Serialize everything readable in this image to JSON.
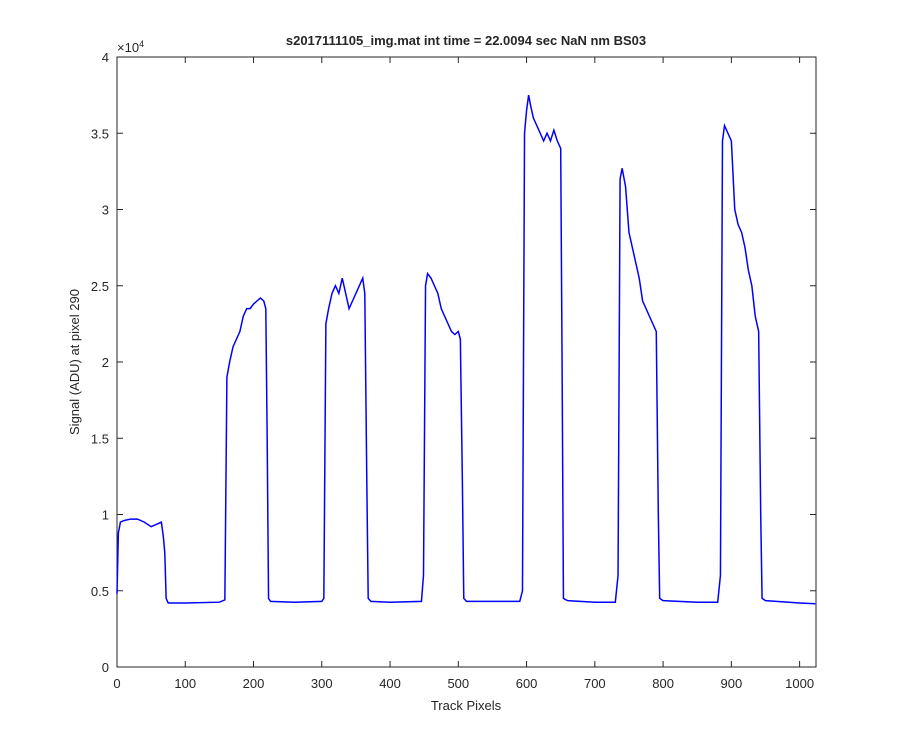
{
  "chart_data": {
    "type": "line",
    "title": "s2017111105_img.mat int time = 22.0094 sec  NaN nm BS03",
    "x_label": "Track Pixels",
    "y_label": "Signal (ADU) at pixel 290",
    "y_multiplier": {
      "base": "×10",
      "exponent": "4"
    },
    "xlim": [
      0,
      1024
    ],
    "ylim": [
      0,
      4
    ],
    "xticks": [
      0,
      100,
      200,
      300,
      400,
      500,
      600,
      700,
      800,
      900,
      1000
    ],
    "yticks": [
      0,
      0.5,
      1,
      1.5,
      2,
      2.5,
      3,
      3.5,
      4
    ],
    "grid": false,
    "series": [
      {
        "name": "signal",
        "color": "#0000ff",
        "x": [
          0,
          2,
          5,
          10,
          20,
          30,
          40,
          50,
          60,
          65,
          68,
          70,
          72,
          75,
          100,
          150,
          158,
          161,
          165,
          170,
          175,
          180,
          185,
          190,
          195,
          200,
          205,
          210,
          215,
          218,
          220,
          222,
          225,
          260,
          300,
          303,
          306,
          310,
          315,
          320,
          325,
          330,
          335,
          340,
          345,
          350,
          355,
          360,
          363,
          366,
          368,
          372,
          400,
          446,
          449,
          452,
          455,
          460,
          465,
          470,
          475,
          480,
          485,
          490,
          495,
          500,
          503,
          506,
          508,
          512,
          550,
          590,
          594,
          597,
          600,
          603,
          606,
          610,
          615,
          620,
          625,
          630,
          635,
          640,
          645,
          650,
          652,
          654,
          660,
          700,
          730,
          734,
          737,
          740,
          745,
          750,
          755,
          760,
          765,
          770,
          775,
          780,
          785,
          790,
          793,
          795,
          800,
          850,
          880,
          884,
          887,
          890,
          895,
          900,
          905,
          910,
          915,
          920,
          925,
          930,
          935,
          940,
          943,
          945,
          950,
          1000,
          1023
        ],
        "values": [
          0.48,
          0.88,
          0.95,
          0.96,
          0.97,
          0.97,
          0.95,
          0.92,
          0.94,
          0.95,
          0.85,
          0.75,
          0.45,
          0.42,
          0.42,
          0.425,
          0.44,
          1.9,
          2.0,
          2.1,
          2.15,
          2.2,
          2.3,
          2.35,
          2.35,
          2.38,
          2.4,
          2.42,
          2.4,
          2.35,
          1.5,
          0.45,
          0.43,
          0.425,
          0.43,
          0.45,
          2.25,
          2.35,
          2.45,
          2.5,
          2.45,
          2.55,
          2.45,
          2.35,
          2.4,
          2.45,
          2.5,
          2.55,
          2.45,
          1.2,
          0.45,
          0.43,
          0.425,
          0.43,
          0.6,
          2.5,
          2.58,
          2.55,
          2.5,
          2.45,
          2.35,
          2.3,
          2.25,
          2.2,
          2.18,
          2.2,
          2.15,
          1.2,
          0.45,
          0.43,
          0.43,
          0.43,
          0.5,
          3.5,
          3.65,
          3.75,
          3.68,
          3.6,
          3.55,
          3.5,
          3.45,
          3.5,
          3.45,
          3.52,
          3.45,
          3.4,
          2.0,
          0.45,
          0.435,
          0.425,
          0.425,
          0.6,
          3.2,
          3.27,
          3.15,
          2.85,
          2.75,
          2.65,
          2.55,
          2.4,
          2.35,
          2.3,
          2.25,
          2.2,
          1.0,
          0.45,
          0.435,
          0.425,
          0.425,
          0.6,
          3.45,
          3.55,
          3.5,
          3.45,
          3.0,
          2.9,
          2.85,
          2.75,
          2.6,
          2.5,
          2.3,
          2.2,
          1.0,
          0.45,
          0.435,
          0.42,
          0.415
        ]
      }
    ]
  }
}
